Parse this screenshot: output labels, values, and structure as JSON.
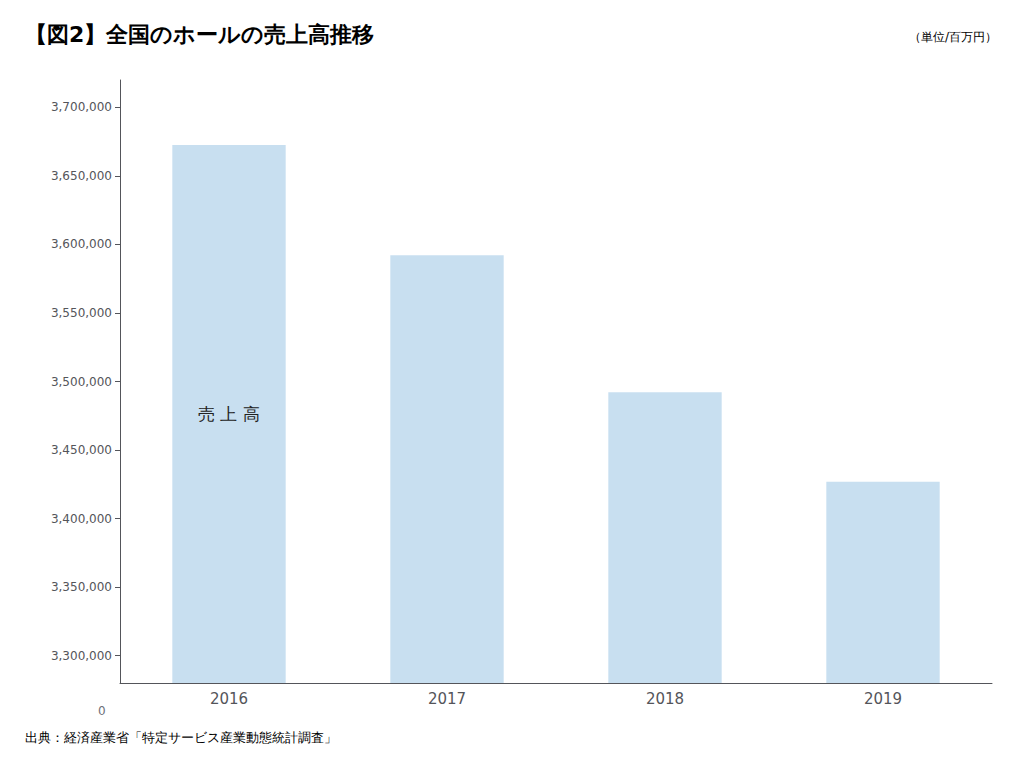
{
  "chart_data": {
    "type": "bar",
    "title": "【図2】全国のホールの売上高推移",
    "subtitle": "（単位/百万円）",
    "source": "出典：経済産業省「特定サービス産業動態統計調査」",
    "categories": [
      "2016",
      "2017",
      "2018",
      "2019"
    ],
    "values": [
      3672540,
      3592180,
      3492150,
      3426870
    ],
    "color": "#c8dff0",
    "ylim": [
      3280000,
      3720000
    ],
    "yticks": [
      {
        "value": 3300000,
        "label": "3,300,000"
      },
      {
        "value": 3350000,
        "label": "3,350,000"
      },
      {
        "value": 3400000,
        "label": "3,400,000"
      },
      {
        "value": 3450000,
        "label": "3,450,000"
      },
      {
        "value": 3500000,
        "label": "3,500,000"
      },
      {
        "value": 3550000,
        "label": "3,550,000"
      },
      {
        "value": 3600000,
        "label": "3,600,000"
      },
      {
        "value": 3650000,
        "label": "3,650,000"
      },
      {
        "value": 3700000,
        "label": "3,700,000"
      }
    ],
    "grid": false,
    "annotations": [
      {
        "text": "売 上 高",
        "category": "2016"
      },
      {
        "text": "0",
        "axis": "y"
      }
    ]
  }
}
